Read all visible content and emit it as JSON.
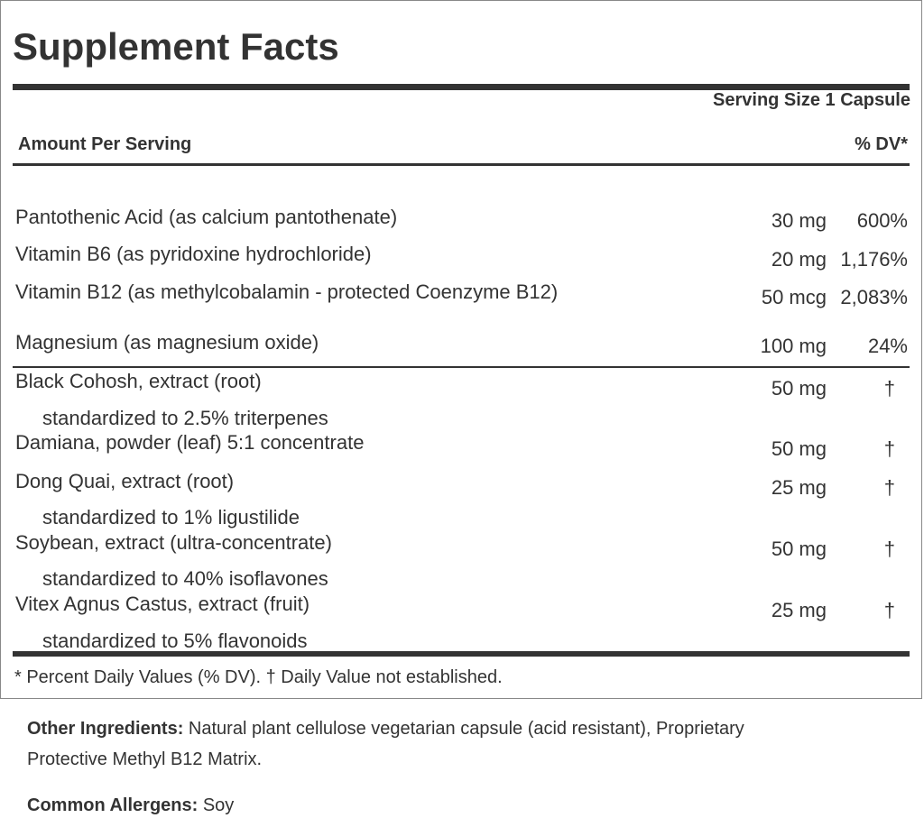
{
  "header": {
    "title": "Supplement Facts",
    "serving_size": "Serving Size 1 Capsule",
    "amount_per_serving": "Amount Per Serving",
    "dv_header": "% DV*"
  },
  "vitamins": [
    {
      "name": "Pantothenic Acid (as calcium pantothenate)",
      "amount": "30 mg",
      "dv": "600%"
    },
    {
      "name": "Vitamin B6 (as pyridoxine hydrochloride)",
      "amount": "20 mg",
      "dv": "1,176%"
    },
    {
      "name": "Vitamin B12 (as methylcobalamin - protected Coenzyme B12)",
      "amount": "50 mcg",
      "dv": "2,083%"
    },
    {
      "name": "Magnesium (as magnesium oxide)",
      "amount": "100 mg",
      "dv": "24%"
    }
  ],
  "herbs": [
    {
      "name": "Black Cohosh, extract (root)",
      "amount": "50 mg",
      "dv": "†",
      "note": "standardized to 2.5% triterpenes"
    },
    {
      "name": "Damiana, powder (leaf) 5:1 concentrate",
      "amount": "50 mg",
      "dv": "†"
    },
    {
      "name": "Dong Quai, extract (root)",
      "amount": "25 mg",
      "dv": "†",
      "note": "standardized to 1% ligustilide"
    },
    {
      "name": "Soybean, extract (ultra-concentrate)",
      "amount": "50 mg",
      "dv": "†",
      "note": "standardized to 40% isoflavones"
    },
    {
      "name": "Vitex Agnus Castus, extract (fruit)",
      "amount": "25 mg",
      "dv": "†",
      "note": "standardized to 5% flavonoids"
    }
  ],
  "footnote": "* Percent Daily Values (% DV). † Daily Value not established.",
  "other_ingredients": {
    "label": "Other Ingredients:",
    "text": "Natural plant cellulose vegetarian capsule (acid resistant), Proprietary",
    "text_cont": "Protective Methyl B12 Matrix."
  },
  "allergens": {
    "label": "Common Allergens:",
    "text": "Soy"
  }
}
